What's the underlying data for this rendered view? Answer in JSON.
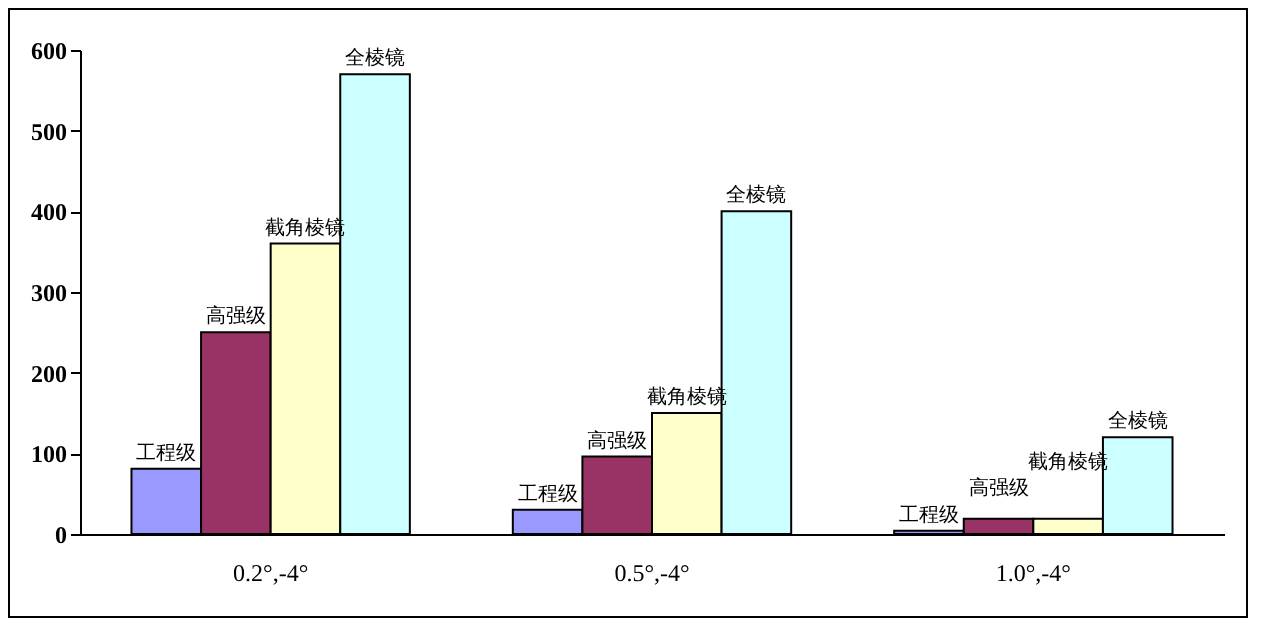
{
  "chart_data": {
    "type": "bar",
    "categories": [
      "0.2°,-4°",
      "0.5°,-4°",
      "1.0°,-4°"
    ],
    "series": [
      {
        "name": "工程级",
        "color": "#9999ff",
        "values": [
          81,
          30,
          4
        ]
      },
      {
        "name": "高强级",
        "color": "#993366",
        "values": [
          250,
          96,
          19
        ]
      },
      {
        "name": "截角棱镜",
        "color": "#ffffcc",
        "values": [
          360,
          150,
          19
        ]
      },
      {
        "name": "全棱镜",
        "color": "#ccffff",
        "values": [
          570,
          400,
          120
        ]
      }
    ],
    "ylim": [
      0,
      600
    ],
    "yticks": [
      0,
      100,
      200,
      300,
      400,
      500,
      600
    ]
  }
}
